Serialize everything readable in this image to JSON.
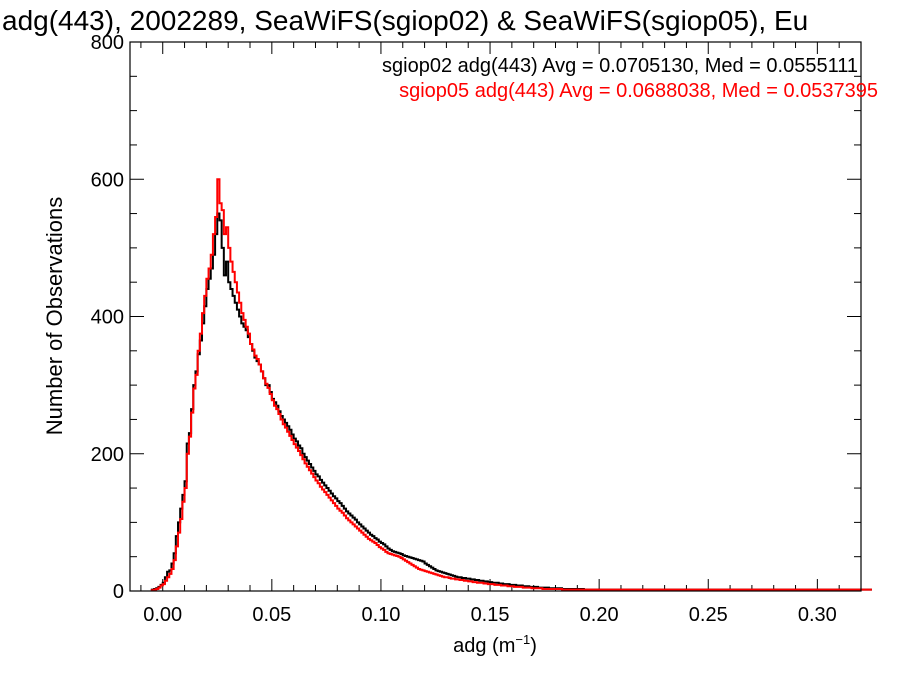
{
  "chart_data": {
    "type": "histogram",
    "title": "adg(443), 2002289, SeaWiFS(sgiop02) & SeaWiFS(sgiop05), Eu",
    "xlabel_main": "adg (m",
    "xlabel_sup": "−1",
    "xlabel_close": ")",
    "ylabel": "Number of Observations",
    "xlim": [
      -0.015,
      0.32
    ],
    "ylim": [
      0,
      800
    ],
    "xticks": [
      "0.00",
      "0.05",
      "0.10",
      "0.15",
      "0.20",
      "0.25",
      "0.30"
    ],
    "xtick_values": [
      0.0,
      0.05,
      0.1,
      0.15,
      0.2,
      0.25,
      0.3
    ],
    "yticks": [
      "0",
      "200",
      "400",
      "600",
      "800"
    ],
    "ytick_values": [
      0,
      200,
      400,
      600,
      800
    ],
    "bin_width": 0.001,
    "series": [
      {
        "name": "sgiop02 adg(443) Avg = 0.0705130, Med = 0.0555111",
        "color": "#000000",
        "bin_start": -0.005,
        "values": [
          2,
          3,
          4,
          6,
          9,
          12,
          20,
          28,
          30,
          40,
          55,
          80,
          100,
          120,
          140,
          160,
          215,
          230,
          265,
          300,
          320,
          345,
          365,
          390,
          415,
          440,
          455,
          470,
          490,
          520,
          550,
          540,
          500,
          460,
          480,
          450,
          440,
          430,
          420,
          410,
          400,
          390,
          385,
          380,
          370,
          360,
          350,
          340,
          335,
          330,
          320,
          310,
          300,
          300,
          290,
          280,
          275,
          270,
          262,
          255,
          250,
          245,
          240,
          235,
          228,
          222,
          218,
          212,
          208,
          200,
          195,
          190,
          185,
          180,
          175,
          170,
          167,
          162,
          158,
          154,
          150,
          146,
          142,
          138,
          135,
          131,
          128,
          124,
          120,
          116,
          113,
          110,
          107,
          104,
          100,
          97,
          94,
          91,
          88,
          85,
          82,
          80,
          77,
          75,
          72,
          70,
          68,
          65,
          62,
          60,
          58,
          57,
          56,
          55,
          54,
          52,
          51,
          50,
          49,
          48,
          47,
          46,
          45,
          44,
          43,
          40,
          38,
          36,
          34,
          32,
          30,
          29,
          28,
          27,
          26,
          25,
          24,
          23,
          22,
          21,
          20,
          20,
          19,
          19,
          18,
          18,
          17,
          17,
          16,
          16,
          15,
          15,
          14,
          14,
          13,
          13,
          12,
          12,
          12,
          11,
          11,
          10,
          10,
          10,
          9,
          9,
          9,
          8,
          8,
          8,
          7,
          7,
          7,
          6,
          6,
          6,
          6,
          5,
          5,
          5,
          5,
          5,
          4,
          4,
          4,
          4,
          4,
          4,
          3,
          3,
          3,
          3,
          3,
          3,
          3,
          3,
          3,
          3,
          2,
          2,
          2,
          2,
          2,
          2,
          2,
          2,
          2,
          2,
          2,
          2,
          2,
          2,
          2,
          2,
          2,
          2,
          2,
          2,
          2,
          2,
          2,
          2,
          2,
          2,
          2,
          2,
          2,
          2,
          2,
          2,
          2,
          2,
          2,
          2,
          2,
          2,
          2,
          2,
          2,
          2,
          2,
          2,
          2,
          2,
          2,
          2,
          2,
          2,
          2,
          2,
          2,
          2,
          2,
          2,
          2,
          2,
          2,
          2,
          2,
          2,
          2,
          2,
          2,
          2,
          2,
          2,
          2,
          2,
          2,
          2,
          2,
          2,
          2,
          2,
          2,
          2,
          2,
          2,
          2,
          2,
          2,
          2,
          2,
          2,
          2,
          2,
          2,
          2,
          2,
          2,
          2,
          2,
          2,
          2,
          2,
          2,
          2,
          2,
          2,
          2,
          2,
          2,
          2,
          2,
          2,
          2,
          2,
          2,
          2,
          2,
          2,
          2,
          2,
          2,
          2,
          2,
          2,
          2,
          2,
          2,
          2,
          2,
          2,
          2,
          2,
          2,
          2,
          2,
          2,
          2
        ]
      },
      {
        "name": "sgiop05 adg(443) Avg = 0.0688038, Med = 0.0537395",
        "color": "#ff0000",
        "bin_start": -0.005,
        "values": [
          1,
          2,
          3,
          5,
          8,
          10,
          15,
          20,
          25,
          32,
          45,
          65,
          85,
          105,
          130,
          150,
          200,
          225,
          260,
          295,
          315,
          350,
          375,
          405,
          430,
          455,
          470,
          490,
          520,
          545,
          600,
          565,
          555,
          520,
          530,
          500,
          480,
          465,
          450,
          435,
          420,
          405,
          395,
          385,
          375,
          360,
          352,
          343,
          338,
          330,
          320,
          310,
          302,
          296,
          287,
          278,
          270,
          265,
          258,
          250,
          243,
          238,
          232,
          226,
          220,
          214,
          209,
          204,
          198,
          192,
          186,
          181,
          176,
          171,
          166,
          161,
          157,
          152,
          148,
          144,
          140,
          136,
          132,
          128,
          124,
          120,
          117,
          114,
          110,
          106,
          103,
          100,
          97,
          94,
          91,
          88,
          85,
          82,
          79,
          76,
          74,
          72,
          70,
          67,
          64,
          62,
          60,
          57,
          55,
          54,
          53,
          52,
          51,
          50,
          48,
          46,
          44,
          42,
          40,
          38,
          36,
          34,
          32,
          31,
          30,
          29,
          28,
          27,
          26,
          25,
          24,
          23,
          22,
          21,
          20,
          20,
          19,
          18,
          18,
          17,
          17,
          16,
          16,
          15,
          15,
          14,
          14,
          13,
          13,
          12,
          12,
          12,
          11,
          11,
          10,
          10,
          10,
          9,
          9,
          9,
          8,
          8,
          8,
          7,
          7,
          7,
          6,
          6,
          6,
          6,
          5,
          5,
          5,
          5,
          4,
          4,
          4,
          4,
          4,
          3,
          3,
          3,
          3,
          3,
          3,
          3,
          3,
          3,
          2,
          2,
          2,
          2,
          2,
          2,
          2,
          2,
          2,
          2,
          2,
          2,
          2,
          2,
          2,
          2,
          2,
          2,
          2,
          2,
          2,
          2,
          2,
          2,
          2,
          2,
          2,
          2,
          2,
          2,
          2,
          2,
          2,
          2,
          2,
          2,
          2,
          2,
          2,
          2,
          2,
          2,
          2,
          2,
          2,
          2,
          2,
          2,
          2,
          2,
          2,
          2,
          2,
          2,
          2,
          2,
          2,
          2,
          2,
          2,
          2,
          2,
          2,
          2,
          2,
          2,
          2,
          2,
          2,
          2,
          2,
          2,
          2,
          2,
          2,
          2,
          2,
          2,
          2,
          2,
          2,
          2,
          2,
          2,
          2,
          2,
          2,
          2,
          2,
          2,
          2,
          2,
          2,
          2,
          2,
          2,
          2,
          2,
          2,
          2,
          2,
          2,
          2,
          2,
          2,
          2,
          2,
          2,
          2,
          2,
          2,
          2,
          2,
          2,
          2,
          2,
          2,
          2,
          2,
          2,
          2,
          2,
          2,
          2,
          2,
          2,
          2,
          2,
          2,
          2,
          2,
          2,
          2,
          2,
          2,
          2,
          2,
          2,
          2,
          2,
          2,
          2
        ]
      }
    ]
  }
}
